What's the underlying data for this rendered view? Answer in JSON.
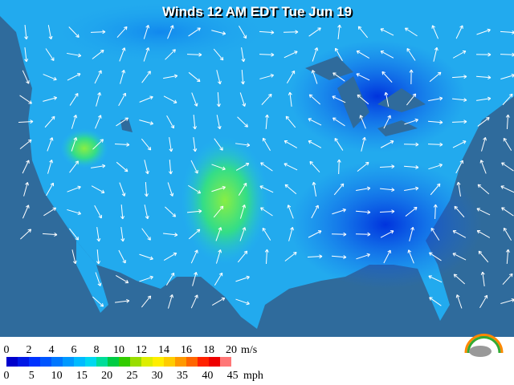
{
  "title": "Winds 12 AM EDT Tue Jun 19",
  "legend": {
    "ms_ticks": [
      0,
      2,
      4,
      6,
      8,
      10,
      12,
      14,
      16,
      18,
      20
    ],
    "ms_unit": "m/s",
    "mph_ticks": [
      0,
      5,
      10,
      15,
      20,
      25,
      30,
      35,
      40,
      45
    ],
    "mph_unit": "mph",
    "colors": [
      "#0000cc",
      "#0018e6",
      "#0033ff",
      "#0055ff",
      "#0077ff",
      "#0099ff",
      "#00bbff",
      "#00d8f0",
      "#00dd99",
      "#00cc44",
      "#33cc00",
      "#99dd00",
      "#ddee00",
      "#ffee00",
      "#ffcc00",
      "#ff9900",
      "#ff6600",
      "#ff2200",
      "#ee0000",
      "#ff7777"
    ]
  }
}
